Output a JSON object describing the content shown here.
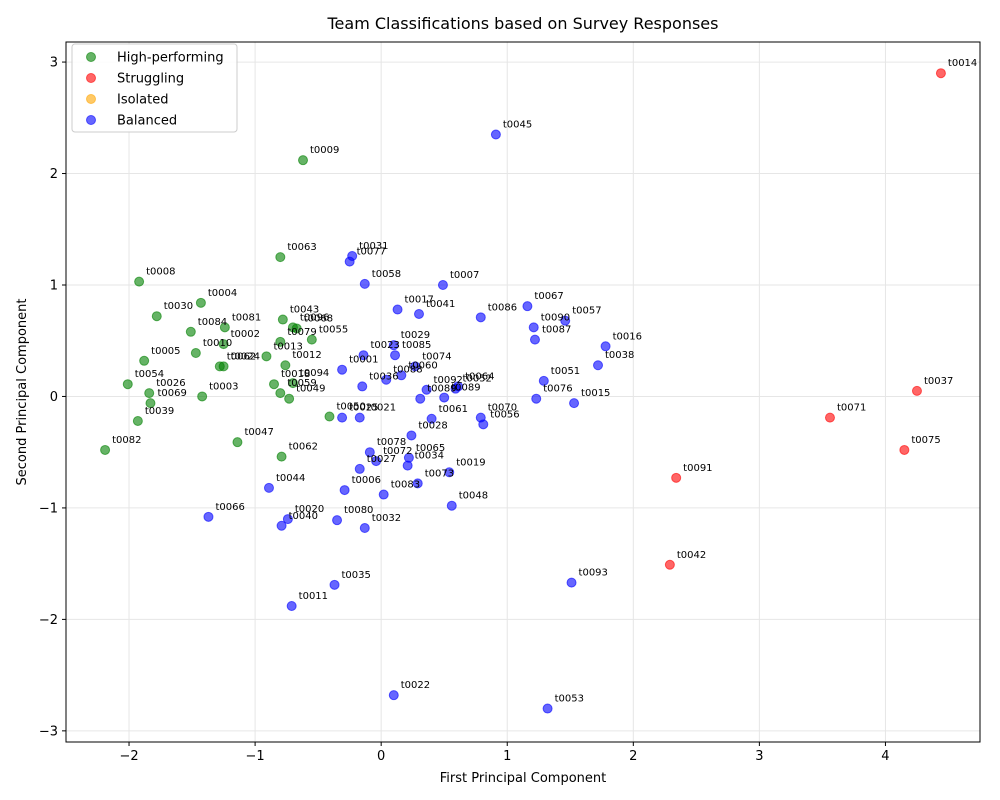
{
  "chart_data": {
    "type": "scatter",
    "title": "Team Classifications based on Survey Responses",
    "xlabel": "First Principal Component",
    "ylabel": "Second Principal Component",
    "xlim": [
      -2.5,
      4.75
    ],
    "ylim": [
      -3.1,
      3.18
    ],
    "xticks": [
      -2,
      -1,
      0,
      1,
      2,
      3,
      4
    ],
    "yticks": [
      -3,
      -2,
      -1,
      0,
      1,
      2,
      3
    ],
    "xtick_labels": [
      "−2",
      "−1",
      "0",
      "1",
      "2",
      "3",
      "4"
    ],
    "ytick_labels": [
      "−3",
      "−2",
      "−1",
      "0",
      "1",
      "2",
      "3"
    ],
    "grid": true,
    "legend_position": "top-left",
    "series": [
      {
        "name": "High-performing",
        "color": "#008000",
        "points": [
          {
            "x": -0.62,
            "y": 2.12,
            "label": "t0009"
          },
          {
            "x": -0.8,
            "y": 1.25,
            "label": "t0063"
          },
          {
            "x": -1.92,
            "y": 1.03,
            "label": "t0008"
          },
          {
            "x": -1.43,
            "y": 0.84,
            "label": "t0004"
          },
          {
            "x": -1.78,
            "y": 0.72,
            "label": "t0030"
          },
          {
            "x": -0.78,
            "y": 0.69,
            "label": "t0043"
          },
          {
            "x": -0.7,
            "y": 0.62,
            "label": "t0096"
          },
          {
            "x": -0.67,
            "y": 0.61,
            "label": "t0068"
          },
          {
            "x": -1.24,
            "y": 0.62,
            "label": "t0081"
          },
          {
            "x": -1.51,
            "y": 0.58,
            "label": "t0084"
          },
          {
            "x": -0.55,
            "y": 0.51,
            "label": "t0055"
          },
          {
            "x": -0.8,
            "y": 0.49,
            "label": "t0079"
          },
          {
            "x": -1.25,
            "y": 0.47,
            "label": "t0002"
          },
          {
            "x": -1.47,
            "y": 0.39,
            "label": "t0010"
          },
          {
            "x": -0.91,
            "y": 0.36,
            "label": "t0013"
          },
          {
            "x": -1.88,
            "y": 0.32,
            "label": "t0005"
          },
          {
            "x": -1.28,
            "y": 0.27,
            "label": "t0062"
          },
          {
            "x": -1.25,
            "y": 0.27,
            "label": "t0024"
          },
          {
            "x": -0.76,
            "y": 0.28,
            "label": "t0012"
          },
          {
            "x": -0.85,
            "y": 0.11,
            "label": "t0018"
          },
          {
            "x": -0.7,
            "y": 0.12,
            "label": "t0094"
          },
          {
            "x": -2.01,
            "y": 0.11,
            "label": "t0054"
          },
          {
            "x": -0.8,
            "y": 0.03,
            "label": "t0059"
          },
          {
            "x": -0.73,
            "y": -0.02,
            "label": "t0049"
          },
          {
            "x": -1.84,
            "y": 0.03,
            "label": "t0026"
          },
          {
            "x": -1.42,
            "y": 0.0,
            "label": "t0003"
          },
          {
            "x": -1.83,
            "y": -0.06,
            "label": "t0069"
          },
          {
            "x": -1.93,
            "y": -0.22,
            "label": "t0039"
          },
          {
            "x": -0.41,
            "y": -0.18,
            "label": "t0050"
          },
          {
            "x": -1.14,
            "y": -0.41,
            "label": "t0047"
          },
          {
            "x": -2.19,
            "y": -0.48,
            "label": "t0082"
          },
          {
            "x": -0.79,
            "y": -0.54,
            "label": "t0062"
          }
        ]
      },
      {
        "name": "Struggling",
        "color": "#ff0000",
        "points": [
          {
            "x": 4.44,
            "y": 2.9,
            "label": "t0014"
          },
          {
            "x": 4.25,
            "y": 0.05,
            "label": "t0037"
          },
          {
            "x": 3.56,
            "y": -0.19,
            "label": "t0071"
          },
          {
            "x": 4.15,
            "y": -0.48,
            "label": "t0075"
          },
          {
            "x": 2.34,
            "y": -0.73,
            "label": "t0091"
          },
          {
            "x": 2.29,
            "y": -1.51,
            "label": "t0042"
          }
        ]
      },
      {
        "name": "Isolated",
        "color": "#ffa500",
        "points": []
      },
      {
        "name": "Balanced",
        "color": "#0000ff",
        "points": [
          {
            "x": 0.91,
            "y": 2.35,
            "label": "t0045"
          },
          {
            "x": -0.23,
            "y": 1.26,
            "label": "t0031"
          },
          {
            "x": -0.25,
            "y": 1.21,
            "label": "t0077"
          },
          {
            "x": -0.13,
            "y": 1.01,
            "label": "t0058"
          },
          {
            "x": 0.49,
            "y": 1.0,
            "label": "t0007"
          },
          {
            "x": 1.16,
            "y": 0.81,
            "label": "t0067"
          },
          {
            "x": 0.13,
            "y": 0.78,
            "label": "t0017"
          },
          {
            "x": 0.3,
            "y": 0.74,
            "label": "t0041"
          },
          {
            "x": 0.79,
            "y": 0.71,
            "label": "t0086"
          },
          {
            "x": 1.46,
            "y": 0.68,
            "label": "t0057"
          },
          {
            "x": 1.21,
            "y": 0.62,
            "label": "t0090"
          },
          {
            "x": 1.22,
            "y": 0.51,
            "label": "t0087"
          },
          {
            "x": 1.78,
            "y": 0.45,
            "label": "t0016"
          },
          {
            "x": 0.1,
            "y": 0.46,
            "label": "t0029"
          },
          {
            "x": 0.11,
            "y": 0.37,
            "label": "t0085"
          },
          {
            "x": -0.14,
            "y": 0.37,
            "label": "t0023"
          },
          {
            "x": -0.31,
            "y": 0.24,
            "label": "t0001"
          },
          {
            "x": 0.27,
            "y": 0.27,
            "label": "t0074"
          },
          {
            "x": 1.72,
            "y": 0.28,
            "label": "t0038"
          },
          {
            "x": 0.16,
            "y": 0.19,
            "label": "t0060"
          },
          {
            "x": 0.04,
            "y": 0.15,
            "label": "t0088"
          },
          {
            "x": 1.29,
            "y": 0.14,
            "label": "t0051"
          },
          {
            "x": 0.61,
            "y": 0.09,
            "label": "t0064"
          },
          {
            "x": -0.15,
            "y": 0.09,
            "label": "t0036"
          },
          {
            "x": 0.36,
            "y": 0.06,
            "label": "t0092"
          },
          {
            "x": 0.59,
            "y": 0.07,
            "label": "t0052"
          },
          {
            "x": 0.31,
            "y": -0.02,
            "label": "t0089"
          },
          {
            "x": 0.5,
            "y": -0.01,
            "label": "t0089"
          },
          {
            "x": 1.23,
            "y": -0.02,
            "label": "t0076"
          },
          {
            "x": 1.53,
            "y": -0.06,
            "label": "t0015"
          },
          {
            "x": -0.31,
            "y": -0.19,
            "label": "t0025"
          },
          {
            "x": -0.17,
            "y": -0.19,
            "label": "t0021"
          },
          {
            "x": 0.4,
            "y": -0.2,
            "label": "t0061"
          },
          {
            "x": 0.79,
            "y": -0.19,
            "label": "t0070"
          },
          {
            "x": 0.81,
            "y": -0.25,
            "label": "t0056"
          },
          {
            "x": 0.24,
            "y": -0.35,
            "label": "t0028"
          },
          {
            "x": -0.09,
            "y": -0.5,
            "label": "t0078"
          },
          {
            "x": 0.22,
            "y": -0.55,
            "label": "t0065"
          },
          {
            "x": -0.04,
            "y": -0.58,
            "label": "t0072"
          },
          {
            "x": 0.21,
            "y": -0.62,
            "label": "t0034"
          },
          {
            "x": -0.17,
            "y": -0.65,
            "label": "t0027"
          },
          {
            "x": 0.54,
            "y": -0.68,
            "label": "t0019"
          },
          {
            "x": 0.29,
            "y": -0.78,
            "label": "t0073"
          },
          {
            "x": -0.29,
            "y": -0.84,
            "label": "t0006"
          },
          {
            "x": 0.02,
            "y": -0.88,
            "label": "t0083"
          },
          {
            "x": -0.89,
            "y": -0.82,
            "label": "t0044"
          },
          {
            "x": 0.56,
            "y": -0.98,
            "label": "t0048"
          },
          {
            "x": -0.74,
            "y": -1.1,
            "label": "t0020"
          },
          {
            "x": -1.37,
            "y": -1.08,
            "label": "t0066"
          },
          {
            "x": -0.35,
            "y": -1.11,
            "label": "t0080"
          },
          {
            "x": -0.79,
            "y": -1.16,
            "label": "t0040"
          },
          {
            "x": -0.13,
            "y": -1.18,
            "label": "t0032"
          },
          {
            "x": 1.51,
            "y": -1.67,
            "label": "t0093"
          },
          {
            "x": -0.37,
            "y": -1.69,
            "label": "t0035"
          },
          {
            "x": -0.71,
            "y": -1.88,
            "label": "t0011"
          },
          {
            "x": 0.1,
            "y": -2.68,
            "label": "t0022"
          },
          {
            "x": 1.32,
            "y": -2.8,
            "label": "t0053"
          }
        ]
      }
    ]
  }
}
